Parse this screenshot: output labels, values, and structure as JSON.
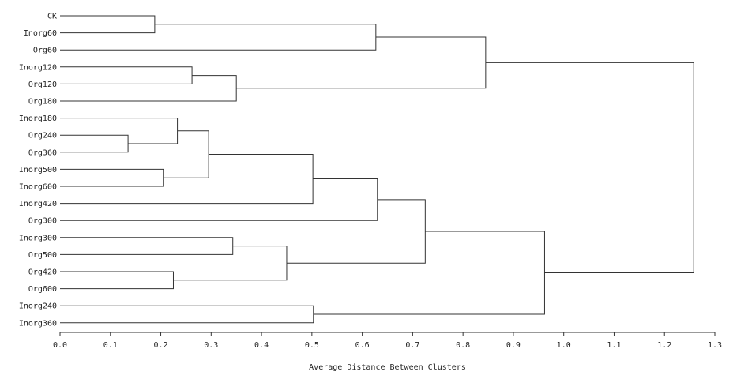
{
  "chart_data": {
    "type": "dendrogram",
    "title": "",
    "xlabel": "Average Distance Between Clusters",
    "xlim": [
      0,
      1.3
    ],
    "xticks": [
      "0.0",
      "0.1",
      "0.2",
      "0.3",
      "0.4",
      "0.5",
      "0.6",
      "0.7",
      "0.8",
      "0.9",
      "1.0",
      "1.1",
      "1.2",
      "1.3"
    ],
    "grid": false,
    "leaves": [
      "CK",
      "Inorg60",
      "Org60",
      "Inorg120",
      "Org120",
      "Org180",
      "Inorg180",
      "Org240",
      "Org360",
      "Inorg500",
      "Inorg600",
      "Inorg420",
      "Org300",
      "Inorg300",
      "Org500",
      "Org420",
      "Org600",
      "Inorg240",
      "Inorg360"
    ],
    "merges": [
      {
        "id": "m1",
        "a": "CK",
        "b": "Inorg60",
        "height": 0.188
      },
      {
        "id": "m2",
        "a": "m1",
        "b": "Org60",
        "height": 0.627
      },
      {
        "id": "m3",
        "a": "Inorg120",
        "b": "Org120",
        "height": 0.262
      },
      {
        "id": "m4",
        "a": "m3",
        "b": "Org180",
        "height": 0.35
      },
      {
        "id": "m5",
        "a": "m2",
        "b": "m4",
        "height": 0.845
      },
      {
        "id": "m6",
        "a": "Org240",
        "b": "Org360",
        "height": 0.135
      },
      {
        "id": "m7",
        "a": "Inorg180",
        "b": "m6",
        "height": 0.233
      },
      {
        "id": "m8",
        "a": "Inorg500",
        "b": "Inorg600",
        "height": 0.205
      },
      {
        "id": "m9",
        "a": "m7",
        "b": "m8",
        "height": 0.295
      },
      {
        "id": "m10",
        "a": "m9",
        "b": "Inorg420",
        "height": 0.502
      },
      {
        "id": "m11",
        "a": "m10",
        "b": "Org300",
        "height": 0.63
      },
      {
        "id": "m12",
        "a": "Inorg300",
        "b": "Org500",
        "height": 0.343
      },
      {
        "id": "m13",
        "a": "Org420",
        "b": "Org600",
        "height": 0.225
      },
      {
        "id": "m14",
        "a": "m12",
        "b": "m13",
        "height": 0.45
      },
      {
        "id": "m15",
        "a": "m11",
        "b": "m14",
        "height": 0.725
      },
      {
        "id": "m16",
        "a": "Inorg240",
        "b": "Inorg360",
        "height": 0.503
      },
      {
        "id": "m17",
        "a": "m15",
        "b": "m16",
        "height": 0.962
      },
      {
        "id": "m18",
        "a": "m5",
        "b": "m17",
        "height": 1.258
      }
    ]
  }
}
